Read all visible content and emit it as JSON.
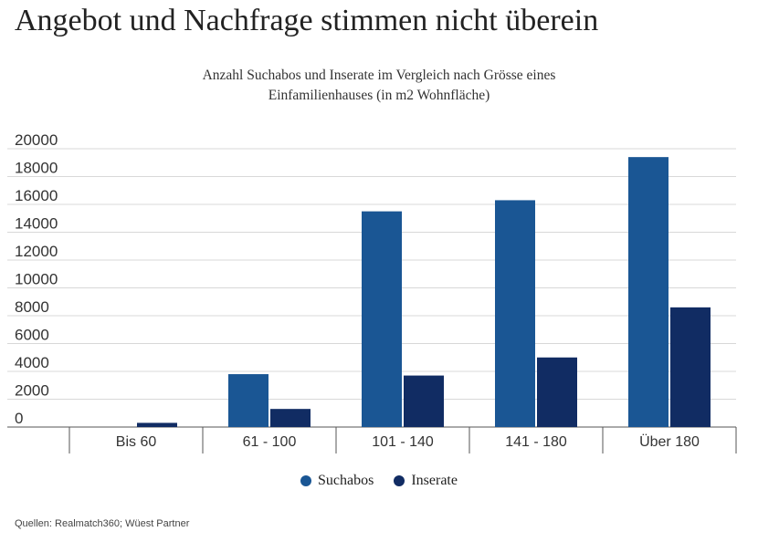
{
  "title": "Angebot und Nachfrage stimmen nicht überein",
  "subtitle_lines": [
    "Anzahl Suchabos und Inserate im Vergleich nach Grösse eines",
    "Einfamilienhauses (in m2 Wohnfläche)"
  ],
  "source": "Quellen: Realmatch360; Wüest Partner",
  "chart_data": {
    "type": "bar",
    "categories": [
      "Bis 60",
      "61 - 100",
      "101 - 140",
      "141 - 180",
      "Über 180"
    ],
    "series": [
      {
        "name": "Suchabos",
        "color": "#1a5694",
        "values": [
          0,
          3800,
          15500,
          16300,
          19400
        ]
      },
      {
        "name": "Inserate",
        "color": "#112c63",
        "values": [
          300,
          1300,
          3700,
          5000,
          8600
        ]
      }
    ],
    "y_ticks": [
      "20000",
      "18000",
      "16000",
      "14000",
      "12000",
      "10000",
      "8000",
      "6000",
      "4000",
      "2000",
      "0"
    ],
    "ylim": [
      0,
      20000
    ],
    "grid": true,
    "legend_position": "bottom"
  }
}
